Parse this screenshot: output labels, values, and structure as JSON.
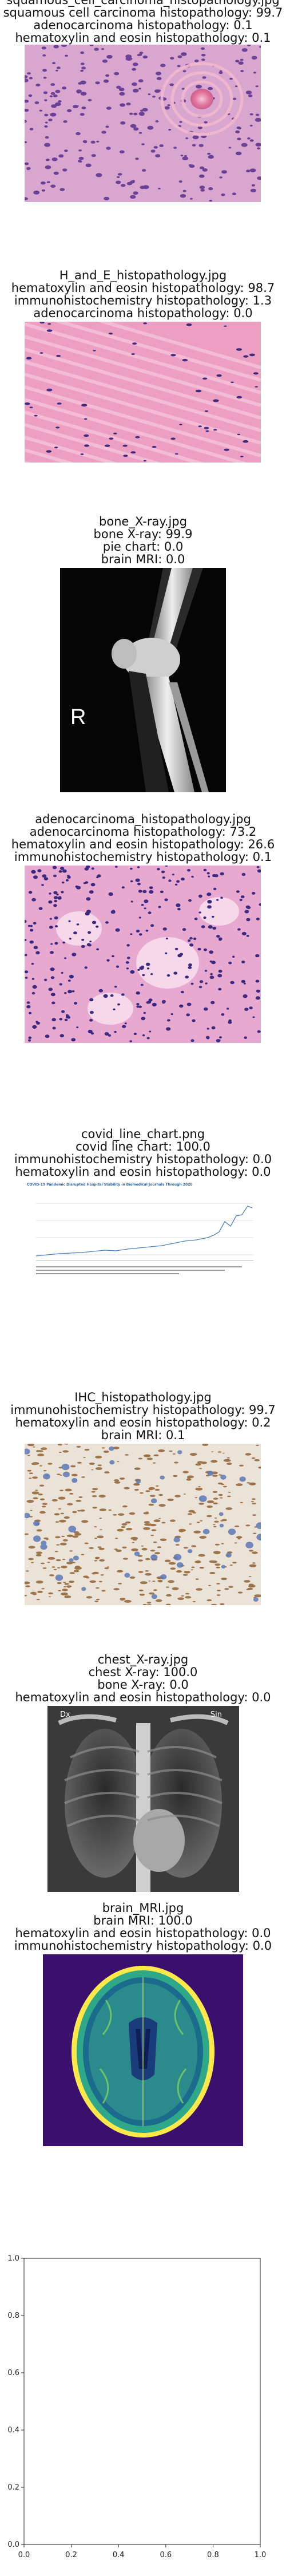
{
  "panels": [
    {
      "filename": "squamous_cell_carcinoma_histopathology.jpg",
      "lines": [
        "squamous cell carcinoma histopathology: 99.7",
        "adenocarcinoma histopathology: 0.1",
        "hematoxylin and eosin histopathology: 0.1"
      ]
    },
    {
      "filename": "H_and_E_histopathology.jpg",
      "lines": [
        "hematoxylin and eosin histopathology: 98.7",
        "immunohistochemistry histopathology: 1.3",
        "adenocarcinoma histopathology: 0.0"
      ]
    },
    {
      "filename": "bone_X-ray.jpg",
      "lines": [
        "bone X-ray: 99.9",
        "pie chart: 0.0",
        "brain MRI: 0.0"
      ],
      "marker": "R"
    },
    {
      "filename": "adenocarcinoma_histopathology.jpg",
      "lines": [
        "adenocarcinoma histopathology: 73.2",
        "hematoxylin and eosin histopathology: 26.6",
        "immunohistochemistry histopathology: 0.1"
      ]
    },
    {
      "filename": "covid_line_chart.png",
      "lines": [
        "covid line chart: 100.0",
        "immunohistochemistry histopathology: 0.0",
        "hematoxylin and eosin histopathology: 0.0"
      ],
      "inner_title": "COVID-19 Pandemic Disrupted Hospital Stability in Biomedical Journals Through 2020"
    },
    {
      "filename": "IHC_histopathology.jpg",
      "lines": [
        "immunohistochemistry histopathology: 99.7",
        "hematoxylin and eosin histopathology: 0.2",
        "brain MRI: 0.1"
      ]
    },
    {
      "filename": "chest_X-ray.jpg",
      "lines": [
        "chest X-ray: 100.0",
        "bone X-ray: 0.0",
        "hematoxylin and eosin histopathology: 0.0"
      ],
      "marker_left": "Dx",
      "marker_right": "Sin"
    },
    {
      "filename": "brain_MRI.jpg",
      "lines": [
        "brain MRI: 100.0",
        "hematoxylin and eosin histopathology: 0.0",
        "immunohistochemistry histopathology: 0.0"
      ]
    }
  ],
  "empty_axes": {
    "x_ticks": [
      "0.0",
      "0.2",
      "0.4",
      "0.6",
      "0.8",
      "1.0"
    ],
    "y_ticks": [
      "0.0",
      "0.2",
      "0.4",
      "0.6",
      "0.8",
      "1.0"
    ]
  },
  "colors": {
    "he_pink": "#e79cc0",
    "nuclei": "#4b2a86",
    "ihc_brown": "#8a5a2b",
    "mri_bg": "#3b0f6e",
    "mri_ring": "#ffe84a"
  }
}
